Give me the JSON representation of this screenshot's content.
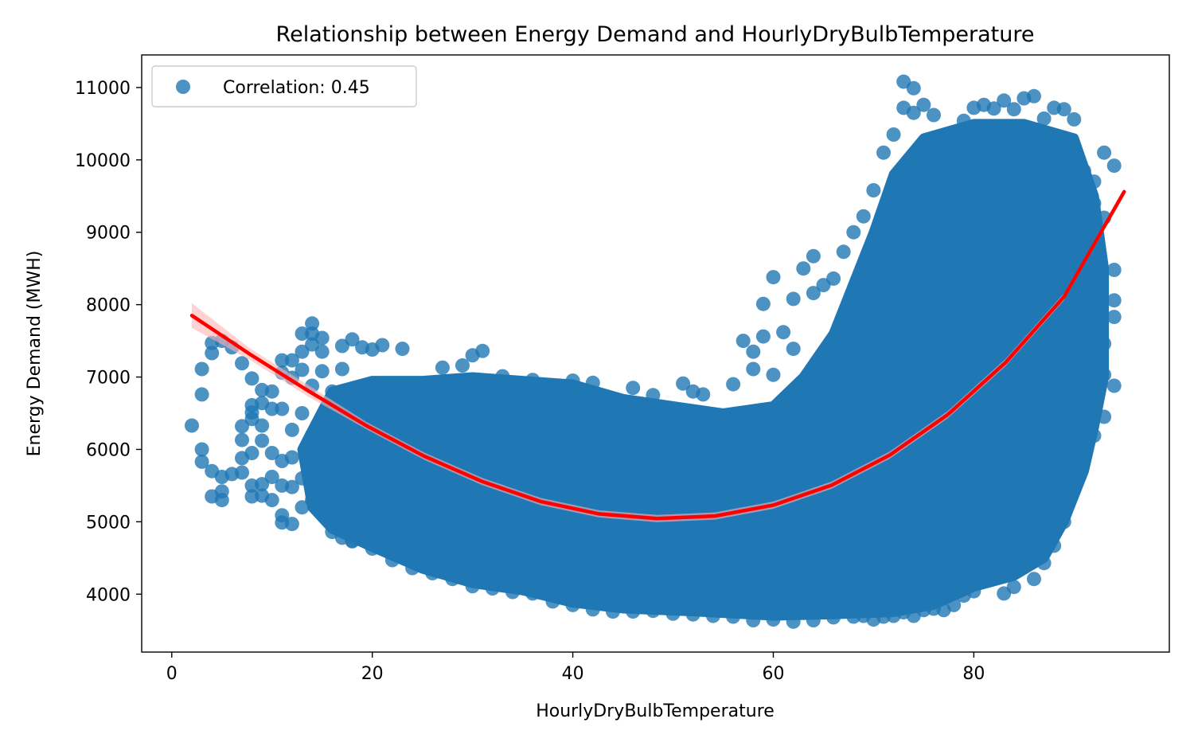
{
  "chart_data": {
    "type": "scatter",
    "title": "Relationship between Energy Demand and HourlyDryBulbTemperature",
    "xlabel": "HourlyDryBulbTemperature",
    "ylabel": "Energy Demand (MWH)",
    "xlim": [
      -3.0,
      99.5
    ],
    "ylim": [
      3200,
      11450
    ],
    "x_ticks": [
      0,
      20,
      40,
      60,
      80
    ],
    "y_ticks": [
      4000,
      5000,
      6000,
      7000,
      8000,
      9000,
      10000,
      11000
    ],
    "grid": false,
    "legend": {
      "placement": "top-left",
      "entries": [
        "Correlation: 0.45"
      ]
    },
    "colors": {
      "points": "#1f77b4",
      "fit_line": "#ff0000",
      "fit_band": "#ffb3b3"
    },
    "series": [
      {
        "name": "Correlation: 0.45",
        "type": "scatter",
        "marker": "circle",
        "points": [
          [
            2,
            6330
          ],
          [
            3,
            7110
          ],
          [
            3,
            6760
          ],
          [
            3,
            6000
          ],
          [
            3,
            5830
          ],
          [
            4,
            7470
          ],
          [
            4,
            7330
          ],
          [
            4,
            5700
          ],
          [
            4,
            5350
          ],
          [
            5,
            7500
          ],
          [
            5,
            5620
          ],
          [
            5,
            5420
          ],
          [
            5,
            5300
          ],
          [
            6,
            7410
          ],
          [
            6,
            5660
          ],
          [
            7,
            7190
          ],
          [
            7,
            6320
          ],
          [
            7,
            6130
          ],
          [
            7,
            5880
          ],
          [
            7,
            5680
          ],
          [
            8,
            6980
          ],
          [
            8,
            6610
          ],
          [
            8,
            6510
          ],
          [
            8,
            6420
          ],
          [
            8,
            5950
          ],
          [
            8,
            5500
          ],
          [
            8,
            5350
          ],
          [
            9,
            6820
          ],
          [
            9,
            6640
          ],
          [
            9,
            6330
          ],
          [
            9,
            6120
          ],
          [
            9,
            5520
          ],
          [
            9,
            5360
          ],
          [
            10,
            6800
          ],
          [
            10,
            6560
          ],
          [
            10,
            5950
          ],
          [
            10,
            5620
          ],
          [
            10,
            5300
          ],
          [
            11,
            7230
          ],
          [
            11,
            7060
          ],
          [
            11,
            6560
          ],
          [
            11,
            5840
          ],
          [
            11,
            5500
          ],
          [
            11,
            5090
          ],
          [
            11,
            4990
          ],
          [
            12,
            7230
          ],
          [
            12,
            6990
          ],
          [
            12,
            6270
          ],
          [
            12,
            5890
          ],
          [
            12,
            5480
          ],
          [
            12,
            4970
          ],
          [
            13,
            7600
          ],
          [
            13,
            7350
          ],
          [
            13,
            7100
          ],
          [
            13,
            6500
          ],
          [
            13,
            5600
          ],
          [
            13,
            5200
          ],
          [
            14,
            7740
          ],
          [
            14,
            7600
          ],
          [
            14,
            7450
          ],
          [
            14,
            6880
          ],
          [
            14,
            6200
          ],
          [
            14,
            5300
          ],
          [
            15,
            7540
          ],
          [
            15,
            7350
          ],
          [
            15,
            7080
          ],
          [
            15,
            5140
          ],
          [
            16,
            4860
          ],
          [
            16,
            6800
          ],
          [
            17,
            7430
          ],
          [
            17,
            7110
          ],
          [
            17,
            4780
          ],
          [
            18,
            7520
          ],
          [
            18,
            4730
          ],
          [
            19,
            7410
          ],
          [
            20,
            7380
          ],
          [
            21,
            7440
          ],
          [
            23,
            7390
          ],
          [
            27,
            7130
          ],
          [
            29,
            7160
          ],
          [
            30,
            7300
          ],
          [
            31,
            7360
          ],
          [
            33,
            7010
          ],
          [
            36,
            6960
          ],
          [
            40,
            6950
          ],
          [
            42,
            6920
          ],
          [
            46,
            6850
          ],
          [
            48,
            6750
          ],
          [
            51,
            6910
          ],
          [
            52,
            6800
          ],
          [
            53,
            6760
          ],
          [
            56,
            6900
          ],
          [
            57,
            7500
          ],
          [
            58,
            7110
          ],
          [
            58,
            7350
          ],
          [
            59,
            7560
          ],
          [
            59,
            8010
          ],
          [
            60,
            8380
          ],
          [
            60,
            7030
          ],
          [
            61,
            7620
          ],
          [
            62,
            8080
          ],
          [
            62,
            7390
          ],
          [
            63,
            8500
          ],
          [
            64,
            8160
          ],
          [
            64,
            8670
          ],
          [
            65,
            8270
          ],
          [
            66,
            8360
          ],
          [
            67,
            8730
          ],
          [
            68,
            9000
          ],
          [
            69,
            9220
          ],
          [
            70,
            9580
          ],
          [
            71,
            10100
          ],
          [
            72,
            10350
          ],
          [
            73,
            11080
          ],
          [
            73,
            10720
          ],
          [
            74,
            10990
          ],
          [
            74,
            10650
          ],
          [
            75,
            10760
          ],
          [
            76,
            10620
          ],
          [
            77,
            10330
          ],
          [
            78,
            10200
          ],
          [
            79,
            10540
          ],
          [
            80,
            10720
          ],
          [
            81,
            10760
          ],
          [
            82,
            10710
          ],
          [
            83,
            10820
          ],
          [
            84,
            10700
          ],
          [
            85,
            10850
          ],
          [
            86,
            10880
          ],
          [
            87,
            10570
          ],
          [
            88,
            10720
          ],
          [
            89,
            10700
          ],
          [
            90,
            10560
          ],
          [
            91,
            9850
          ],
          [
            92,
            9400
          ],
          [
            93,
            10100
          ],
          [
            94,
            9920
          ],
          [
            92,
            9700
          ],
          [
            93,
            9200
          ],
          [
            94,
            8480
          ],
          [
            94,
            8060
          ],
          [
            94,
            7830
          ],
          [
            93,
            7460
          ],
          [
            93,
            7030
          ],
          [
            94,
            6880
          ],
          [
            93,
            6450
          ],
          [
            92,
            6190
          ],
          [
            91,
            5910
          ],
          [
            90,
            5470
          ],
          [
            89,
            5000
          ],
          [
            88,
            4670
          ],
          [
            87,
            4430
          ],
          [
            86,
            4210
          ],
          [
            85,
            4430
          ],
          [
            84,
            4100
          ],
          [
            83,
            4010
          ],
          [
            82,
            4230
          ],
          [
            81,
            4260
          ],
          [
            80,
            4040
          ],
          [
            79,
            3980
          ],
          [
            78,
            3850
          ],
          [
            77,
            3780
          ],
          [
            76,
            3800
          ],
          [
            75,
            3780
          ],
          [
            74,
            3700
          ],
          [
            73,
            3750
          ],
          [
            72,
            3700
          ],
          [
            71,
            3690
          ],
          [
            70,
            3650
          ],
          [
            69,
            3700
          ],
          [
            68,
            3690
          ],
          [
            66,
            3680
          ],
          [
            64,
            3640
          ],
          [
            62,
            3620
          ],
          [
            60,
            3650
          ],
          [
            58,
            3640
          ],
          [
            56,
            3690
          ],
          [
            54,
            3700
          ],
          [
            52,
            3720
          ],
          [
            50,
            3730
          ],
          [
            48,
            3770
          ],
          [
            46,
            3760
          ],
          [
            44,
            3760
          ],
          [
            42,
            3790
          ],
          [
            40,
            3850
          ],
          [
            38,
            3900
          ],
          [
            36,
            4010
          ],
          [
            34,
            4030
          ],
          [
            32,
            4080
          ],
          [
            30,
            4110
          ],
          [
            28,
            4210
          ],
          [
            26,
            4290
          ],
          [
            24,
            4360
          ],
          [
            22,
            4470
          ],
          [
            20,
            4630
          ],
          [
            18,
            4740
          ],
          [
            30,
            6500
          ],
          [
            40,
            5500
          ],
          [
            50,
            5000
          ],
          [
            60,
            5200
          ],
          [
            70,
            6500
          ],
          [
            80,
            8000
          ],
          [
            85,
            9000
          ],
          [
            90,
            8500
          ],
          [
            35,
            6000
          ],
          [
            45,
            4800
          ],
          [
            55,
            4500
          ],
          [
            65,
            6000
          ],
          [
            75,
            7500
          ]
        ]
      },
      {
        "name": "",
        "type": "line",
        "x": [
          2,
          7.8,
          13.6,
          19.4,
          25.2,
          31,
          36.8,
          42.6,
          48.4,
          54.2,
          60,
          65.8,
          71.6,
          77.4,
          83.2,
          89,
          95
        ],
        "y": [
          7850,
          7315,
          6810,
          6330,
          5905,
          5555,
          5280,
          5110,
          5045,
          5080,
          5230,
          5505,
          5920,
          6480,
          7205,
          8110,
          9560
        ]
      }
    ]
  }
}
